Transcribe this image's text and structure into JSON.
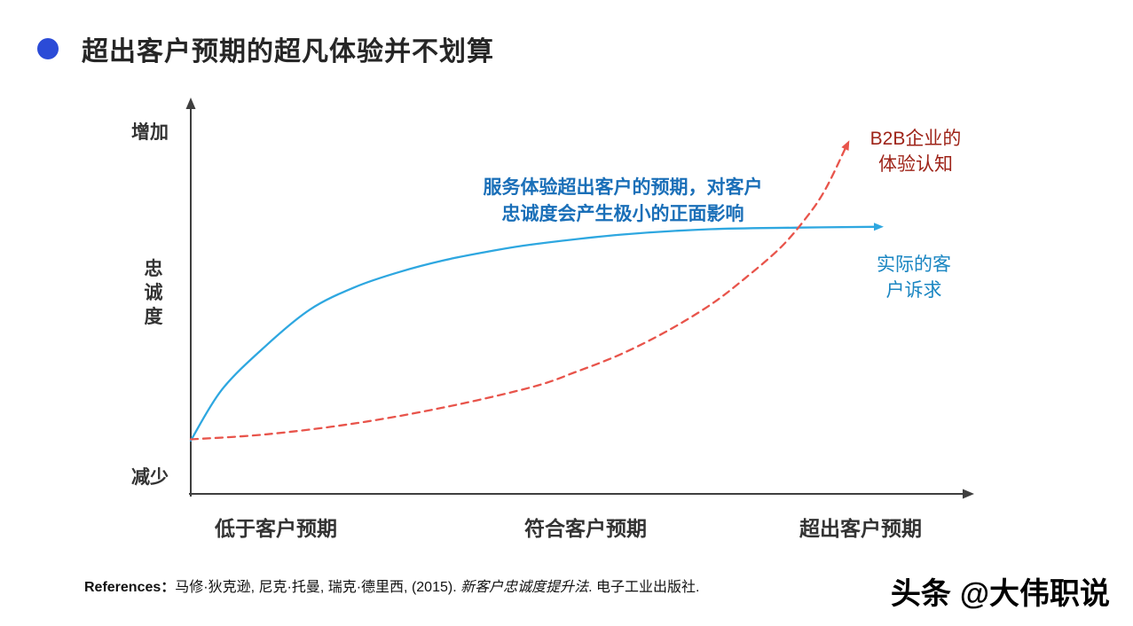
{
  "slide": {
    "title": "超出客户预期的超凡体验并不划算",
    "accent_color": "#2b4bd7"
  },
  "chart_data": {
    "type": "line",
    "title": "超出客户预期的超凡体验并不划算",
    "ylabel": "忠诚度",
    "y_top_label": "增加",
    "y_bottom_label": "减少",
    "x_tick_labels": [
      "低于客户预期",
      "符合客户预期",
      "超出客户预期"
    ],
    "axis_color": "#3f3f3f",
    "grid": "off",
    "x_range_norm": [
      0,
      100
    ],
    "y_range_norm": [
      0,
      100
    ],
    "annotation": {
      "text": "服务体验超出客户的预期，对客户忠诚度会产生极小的正面影响",
      "lines": [
        "服务体验超出客户的预期，对客户",
        "忠诚度会产生极小的正面影响"
      ],
      "color": "#1a6fb8"
    },
    "series": [
      {
        "name": "实际的客户诉求",
        "label_lines": [
          "实际的客",
          "户诉求"
        ],
        "color": "#2ea7e0",
        "label_color": "#1a86c2",
        "style": "solid",
        "points": [
          [
            0,
            13.7
          ],
          [
            4,
            26.8
          ],
          [
            9.7,
            38.2
          ],
          [
            15.3,
            47.4
          ],
          [
            21,
            53.1
          ],
          [
            26.7,
            57
          ],
          [
            32.4,
            60
          ],
          [
            38,
            62.2
          ],
          [
            43.8,
            64.1
          ],
          [
            55.1,
            66.6
          ],
          [
            66.5,
            68
          ],
          [
            77.8,
            68.4
          ],
          [
            87.5,
            68.6
          ]
        ]
      },
      {
        "name": "B2B企业的体验认知",
        "label_lines": [
          "B2B企业的",
          "体验认知"
        ],
        "color": "#e8544b",
        "label_color": "#9e2318",
        "style": "dashed",
        "points": [
          [
            0,
            14
          ],
          [
            9.7,
            15.3
          ],
          [
            21,
            18.1
          ],
          [
            32.4,
            22.2
          ],
          [
            43.8,
            27.5
          ],
          [
            49.4,
            31.4
          ],
          [
            55.1,
            35.9
          ],
          [
            60.8,
            41.6
          ],
          [
            66.5,
            48.5
          ],
          [
            71,
            55.4
          ],
          [
            75.6,
            63.4
          ],
          [
            79,
            71.4
          ],
          [
            81.3,
            78.3
          ],
          [
            83.8,
            88.6
          ]
        ]
      }
    ]
  },
  "references": {
    "label": "References：",
    "authors": "马修·狄克逊, 尼克·托曼, 瑞克·德里西, (2015). ",
    "book_title": "新客户忠诚度提升法",
    "suffix": ". 电子工业出版社."
  },
  "watermark": {
    "brand": "头条",
    "handle": "@大伟职说"
  }
}
